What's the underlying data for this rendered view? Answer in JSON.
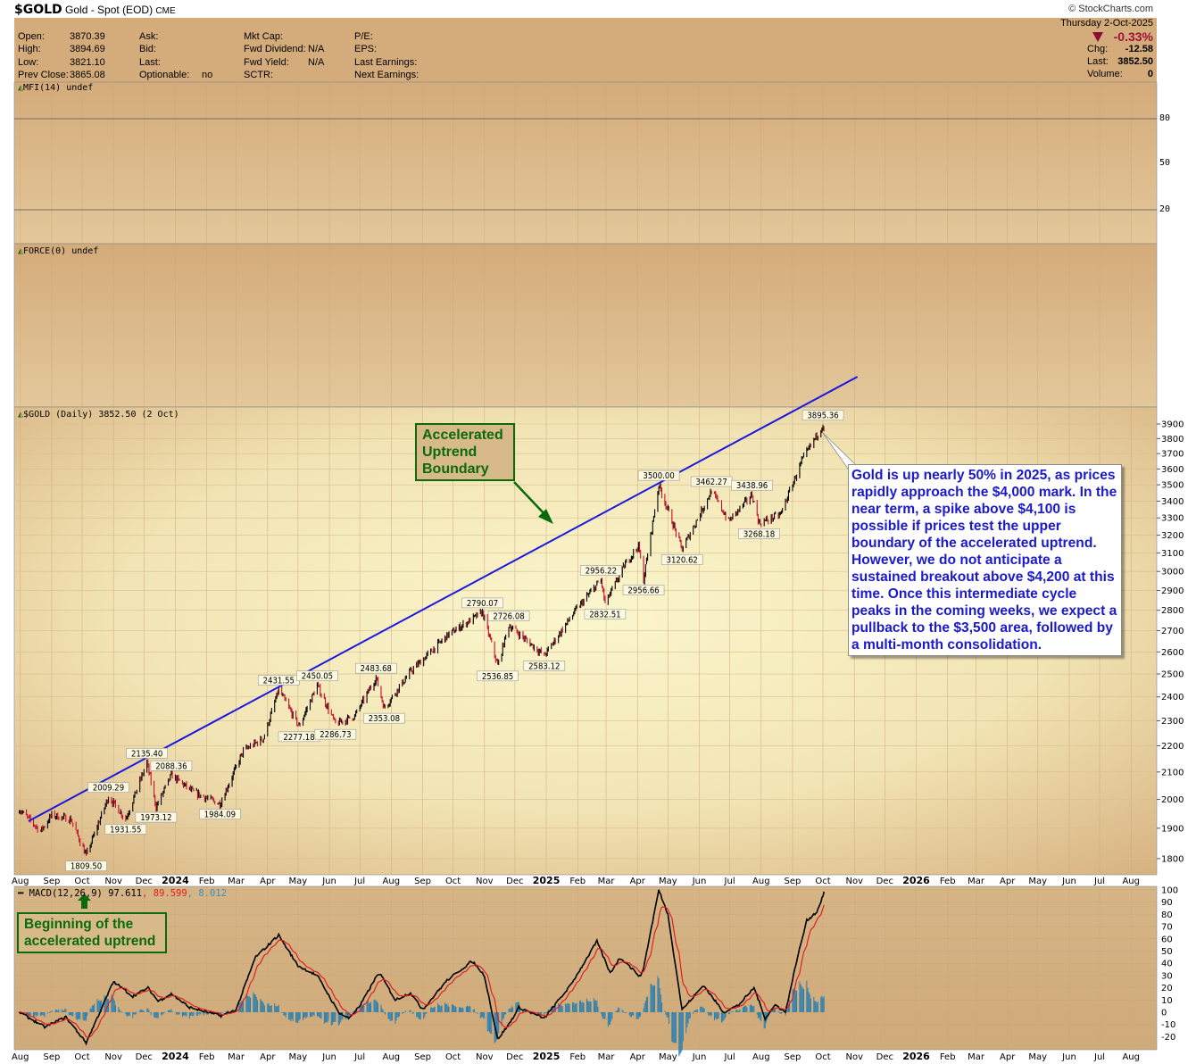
{
  "header": {
    "symbol": "$GOLD",
    "name": "Gold - Spot (EOD)",
    "exchange": "CME",
    "credit": "StockCharts.com",
    "date": "Thursday  2-Oct-2025",
    "pct_change": "-0.33%",
    "chg_label": "Chg:",
    "chg": "-12.58",
    "last_label": "Last:",
    "last": "3852.50",
    "volume_label": "Volume:",
    "volume": "0",
    "down_color": "#a0103a"
  },
  "info": {
    "col1": [
      {
        "label": "Open:",
        "value": "3870.39"
      },
      {
        "label": "High:",
        "value": "3894.69"
      },
      {
        "label": "Low:",
        "value": "3821.10"
      },
      {
        "label": "Prev Close:",
        "value": "3865.08"
      }
    ],
    "col2": [
      {
        "label": "Ask:",
        "value": ""
      },
      {
        "label": "Bid:",
        "value": ""
      },
      {
        "label": "Last:",
        "value": ""
      },
      {
        "label": "Optionable:",
        "value": "no"
      }
    ],
    "col3": [
      {
        "label": "Mkt Cap:",
        "value": ""
      },
      {
        "label": "Fwd Dividend:",
        "value": "N/A"
      },
      {
        "label": "Fwd Yield:",
        "value": "N/A"
      },
      {
        "label": "SCTR:",
        "value": ""
      }
    ],
    "col4": [
      {
        "label": "P/E:"
      },
      {
        "label": "EPS:"
      },
      {
        "label": "Last Earnings:"
      },
      {
        "label": "Next Earnings:"
      }
    ]
  },
  "panels": {
    "mfi_label": "MFI(14) undef",
    "mfi_ticks": [
      "80",
      "50",
      "20"
    ],
    "force_label": "FORCE(0) undef",
    "price_label": "$GOLD (Daily) 3852.50 (2 Oct)",
    "macd_label": "MACD(12,26,9)",
    "macd_value": "97.611",
    "macd_signal": "89.599",
    "macd_hist": "8.012"
  },
  "annotations": {
    "trend_box": "Accelerated Uptrend Boundary",
    "begin_box": "Beginning of the accelerated uptrend",
    "note": "Gold is up nearly 50% in 2025, as prices rapidly approach the $4,000 mark. In the near term, a spike above $4,100 is possible if prices test the upper boundary of the accelerated uptrend. However, we do not anticipate a sustained breakout above $4,200 at this time. Once this intermediate cycle peaks in the coming weeks, we expect a pullback to the $3,500 area, followed by a multi-month consolidation."
  },
  "chart_data": {
    "type": "line",
    "title": "$GOLD (Daily) 3852.50 (2 Oct)",
    "y_scale": "log",
    "ylim": [
      1750,
      4000
    ],
    "price_ticks": [
      "3900",
      "3800",
      "3700",
      "3600",
      "3500",
      "3400",
      "3300",
      "3200",
      "3100",
      "3000",
      "2900",
      "2800",
      "2700",
      "2600",
      "2500",
      "2400",
      "2300",
      "2200",
      "2100",
      "2000",
      "1900",
      "1800"
    ],
    "month_ticks": [
      "Aug",
      "Sep",
      "Oct",
      "Nov",
      "Dec",
      "2024",
      "Feb",
      "Mar",
      "Apr",
      "May",
      "Jun",
      "Jul",
      "Aug",
      "Sep",
      "Oct",
      "Nov",
      "Dec",
      "2025",
      "Feb",
      "Mar",
      "Apr",
      "May",
      "Jun",
      "Jul",
      "Aug",
      "Sep",
      "Oct",
      "Nov",
      "Dec",
      "2026",
      "Feb",
      "Mar",
      "Apr",
      "May",
      "Jun",
      "Jul",
      "Aug"
    ],
    "grid": true,
    "up_color": "#000000",
    "down_color": "#c0102a",
    "price": [
      {
        "date": "2023-07-31",
        "value": 1965
      },
      {
        "date": "2023-08-21",
        "value": 1890
      },
      {
        "date": "2023-09-01",
        "value": 1945
      },
      {
        "date": "2023-09-20",
        "value": 1930
      },
      {
        "date": "2023-10-05",
        "value": 1809.5,
        "label": "low"
      },
      {
        "date": "2023-10-27",
        "value": 2009.29,
        "label": "high"
      },
      {
        "date": "2023-11-13",
        "value": 1931.55,
        "label": "low"
      },
      {
        "date": "2023-12-04",
        "value": 2135.4,
        "label": "high"
      },
      {
        "date": "2023-12-13",
        "value": 1973.12,
        "label": "low"
      },
      {
        "date": "2023-12-28",
        "value": 2088.36,
        "label": "high"
      },
      {
        "date": "2024-01-19",
        "value": 2025
      },
      {
        "date": "2024-02-14",
        "value": 1984.09,
        "label": "low"
      },
      {
        "date": "2024-03-08",
        "value": 2180
      },
      {
        "date": "2024-03-28",
        "value": 2230
      },
      {
        "date": "2024-04-12",
        "value": 2431.55,
        "label": "high"
      },
      {
        "date": "2024-05-02",
        "value": 2277.18,
        "label": "low"
      },
      {
        "date": "2024-05-20",
        "value": 2450.05,
        "label": "high"
      },
      {
        "date": "2024-06-07",
        "value": 2286.73,
        "label": "low"
      },
      {
        "date": "2024-06-26",
        "value": 2320
      },
      {
        "date": "2024-07-17",
        "value": 2483.68,
        "label": "high"
      },
      {
        "date": "2024-07-25",
        "value": 2353.08,
        "label": "low"
      },
      {
        "date": "2024-08-20",
        "value": 2510
      },
      {
        "date": "2024-09-26",
        "value": 2680
      },
      {
        "date": "2024-10-30",
        "value": 2790.07,
        "label": "high"
      },
      {
        "date": "2024-11-14",
        "value": 2536.85,
        "label": "low"
      },
      {
        "date": "2024-11-25",
        "value": 2726.08,
        "label": "high"
      },
      {
        "date": "2024-12-30",
        "value": 2583.12,
        "label": "low"
      },
      {
        "date": "2025-01-30",
        "value": 2800
      },
      {
        "date": "2025-02-24",
        "value": 2956.22,
        "label": "high"
      },
      {
        "date": "2025-02-28",
        "value": 2832.51,
        "label": "low"
      },
      {
        "date": "2025-03-20",
        "value": 3040
      },
      {
        "date": "2025-04-02",
        "value": 3140
      },
      {
        "date": "2025-04-07",
        "value": 2956.66,
        "label": "low"
      },
      {
        "date": "2025-04-22",
        "value": 3500.0,
        "label": "high"
      },
      {
        "date": "2025-05-15",
        "value": 3120.62,
        "label": "low"
      },
      {
        "date": "2025-06-13",
        "value": 3462.27,
        "label": "high"
      },
      {
        "date": "2025-06-30",
        "value": 3280
      },
      {
        "date": "2025-07-23",
        "value": 3438.96,
        "label": "high"
      },
      {
        "date": "2025-07-30",
        "value": 3268.18,
        "label": "low"
      },
      {
        "date": "2025-08-20",
        "value": 3320
      },
      {
        "date": "2025-09-10",
        "value": 3650
      },
      {
        "date": "2025-10-01",
        "value": 3895.36,
        "label": "high"
      },
      {
        "date": "2025-10-02",
        "value": 3852.5
      }
    ],
    "trendline": [
      {
        "date": "2023-08-09",
        "value": 1924
      },
      {
        "date": "2025-11-04",
        "value": 4242
      }
    ],
    "trendline_color": "#1a1ae0",
    "macd": {
      "ylim": [
        -25,
        100
      ],
      "ticks": [
        "100",
        "90",
        "80",
        "70",
        "60",
        "50",
        "40",
        "30",
        "20",
        "10",
        "0",
        "-10",
        "-20"
      ],
      "line_color": "#000000",
      "signal_color": "#e02020",
      "hist_color": "#2a7fb0",
      "values": [
        {
          "date": "2023-07-31",
          "value": 0
        },
        {
          "date": "2023-08-25",
          "value": -12
        },
        {
          "date": "2023-09-15",
          "value": -4
        },
        {
          "date": "2023-10-05",
          "value": -25
        },
        {
          "date": "2023-11-01",
          "value": 25
        },
        {
          "date": "2023-11-20",
          "value": 13
        },
        {
          "date": "2023-12-05",
          "value": 20
        },
        {
          "date": "2023-12-15",
          "value": 9
        },
        {
          "date": "2023-12-28",
          "value": 15
        },
        {
          "date": "2024-01-15",
          "value": 4
        },
        {
          "date": "2024-02-15",
          "value": -3
        },
        {
          "date": "2024-03-01",
          "value": 2
        },
        {
          "date": "2024-03-20",
          "value": 45
        },
        {
          "date": "2024-04-12",
          "value": 63
        },
        {
          "date": "2024-05-01",
          "value": 38
        },
        {
          "date": "2024-05-20",
          "value": 30
        },
        {
          "date": "2024-06-10",
          "value": 0
        },
        {
          "date": "2024-06-20",
          "value": -5
        },
        {
          "date": "2024-07-01",
          "value": 5
        },
        {
          "date": "2024-07-20",
          "value": 33
        },
        {
          "date": "2024-08-05",
          "value": 10
        },
        {
          "date": "2024-08-20",
          "value": 16
        },
        {
          "date": "2024-09-01",
          "value": 2
        },
        {
          "date": "2024-09-25",
          "value": 26
        },
        {
          "date": "2024-10-20",
          "value": 42
        },
        {
          "date": "2024-11-01",
          "value": 30
        },
        {
          "date": "2024-11-14",
          "value": -22
        },
        {
          "date": "2024-11-25",
          "value": -10
        },
        {
          "date": "2024-12-05",
          "value": 4
        },
        {
          "date": "2024-12-30",
          "value": -5
        },
        {
          "date": "2025-01-25",
          "value": 22
        },
        {
          "date": "2025-02-20",
          "value": 58
        },
        {
          "date": "2025-03-05",
          "value": 32
        },
        {
          "date": "2025-03-15",
          "value": 45
        },
        {
          "date": "2025-04-05",
          "value": 28
        },
        {
          "date": "2025-04-22",
          "value": 100
        },
        {
          "date": "2025-05-01",
          "value": 80
        },
        {
          "date": "2025-05-15",
          "value": 2
        },
        {
          "date": "2025-06-05",
          "value": 22
        },
        {
          "date": "2025-06-25",
          "value": 0
        },
        {
          "date": "2025-07-10",
          "value": 6
        },
        {
          "date": "2025-07-25",
          "value": 20
        },
        {
          "date": "2025-08-05",
          "value": -5
        },
        {
          "date": "2025-08-15",
          "value": 6
        },
        {
          "date": "2025-08-25",
          "value": 0
        },
        {
          "date": "2025-09-05",
          "value": 42
        },
        {
          "date": "2025-09-15",
          "value": 75
        },
        {
          "date": "2025-09-25",
          "value": 82
        },
        {
          "date": "2025-10-02",
          "value": 97.611
        }
      ]
    }
  }
}
